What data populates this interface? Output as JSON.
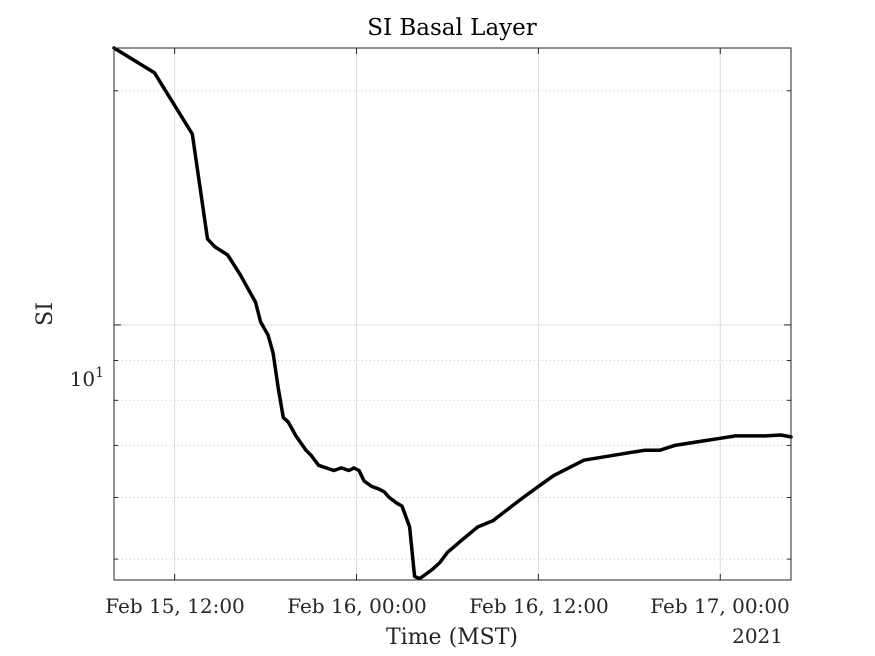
{
  "chart_data": {
    "type": "line",
    "title": "SI Basal Layer",
    "xlabel": "Time (MST)",
    "ylabel": "SI",
    "x_tick_labels": [
      "Feb 15, 12:00",
      "Feb 16, 00:00",
      "Feb 16, 12:00",
      "Feb 17, 00:00"
    ],
    "x_ticks": [
      "2021-02-15T12:00",
      "2021-02-16T00:00",
      "2021-02-16T12:00",
      "2021-02-17T00:00"
    ],
    "x_secondary_label": "2021",
    "xlim": [
      "2021-02-15T08:00",
      "2021-02-17T04:40"
    ],
    "y_scale": "log",
    "ylim": [
      4.7,
      22.7
    ],
    "y_tick_labels": [
      {
        "base": "10",
        "exp": "1",
        "value": 10
      }
    ],
    "y_minor_ticks": [
      5,
      6,
      7,
      8,
      9,
      20
    ],
    "grid": true,
    "series": [
      {
        "color": "#000000",
        "x": [
          "2021-02-15T08:00",
          "2021-02-15T10:40",
          "2021-02-15T13:10",
          "2021-02-15T14:10",
          "2021-02-15T14:40",
          "2021-02-15T15:30",
          "2021-02-15T16:20",
          "2021-02-15T17:20",
          "2021-02-15T17:40",
          "2021-02-15T18:10",
          "2021-02-15T18:30",
          "2021-02-15T18:50",
          "2021-02-15T19:10",
          "2021-02-15T19:30",
          "2021-02-15T20:00",
          "2021-02-15T20:40",
          "2021-02-15T21:00",
          "2021-02-15T21:30",
          "2021-02-15T22:00",
          "2021-02-15T22:30",
          "2021-02-15T23:00",
          "2021-02-15T23:30",
          "2021-02-15T23:50",
          "2021-02-16T00:10",
          "2021-02-16T00:30",
          "2021-02-16T01:00",
          "2021-02-16T01:30",
          "2021-02-16T01:50",
          "2021-02-16T02:10",
          "2021-02-16T02:40",
          "2021-02-16T03:00",
          "2021-02-16T03:30",
          "2021-02-16T03:50",
          "2021-02-16T04:10",
          "2021-02-16T04:30",
          "2021-02-16T05:00",
          "2021-02-16T05:30",
          "2021-02-16T06:00",
          "2021-02-16T07:00",
          "2021-02-16T08:00",
          "2021-02-16T09:00",
          "2021-02-16T10:00",
          "2021-02-16T11:00",
          "2021-02-16T12:00",
          "2021-02-16T13:00",
          "2021-02-16T14:00",
          "2021-02-16T15:00",
          "2021-02-16T16:00",
          "2021-02-16T17:00",
          "2021-02-16T18:00",
          "2021-02-16T19:00",
          "2021-02-16T20:00",
          "2021-02-16T21:00",
          "2021-02-16T22:00",
          "2021-02-16T23:00",
          "2021-02-17T00:00",
          "2021-02-17T01:00",
          "2021-02-17T02:00",
          "2021-02-17T03:00",
          "2021-02-17T04:00",
          "2021-02-17T04:40"
        ],
        "y": [
          22.7,
          21.1,
          17.6,
          12.9,
          12.6,
          12.3,
          11.6,
          10.7,
          10.1,
          9.7,
          9.2,
          8.3,
          7.6,
          7.5,
          7.2,
          6.9,
          6.8,
          6.6,
          6.55,
          6.5,
          6.55,
          6.5,
          6.55,
          6.5,
          6.3,
          6.2,
          6.15,
          6.1,
          6.0,
          5.9,
          5.85,
          5.5,
          4.75,
          4.72,
          4.77,
          4.85,
          4.95,
          5.1,
          5.3,
          5.5,
          5.6,
          5.8,
          6.0,
          6.2,
          6.4,
          6.55,
          6.7,
          6.75,
          6.8,
          6.85,
          6.9,
          6.9,
          7.0,
          7.05,
          7.1,
          7.15,
          7.2,
          7.2,
          7.2,
          7.22,
          7.18
        ]
      }
    ]
  }
}
